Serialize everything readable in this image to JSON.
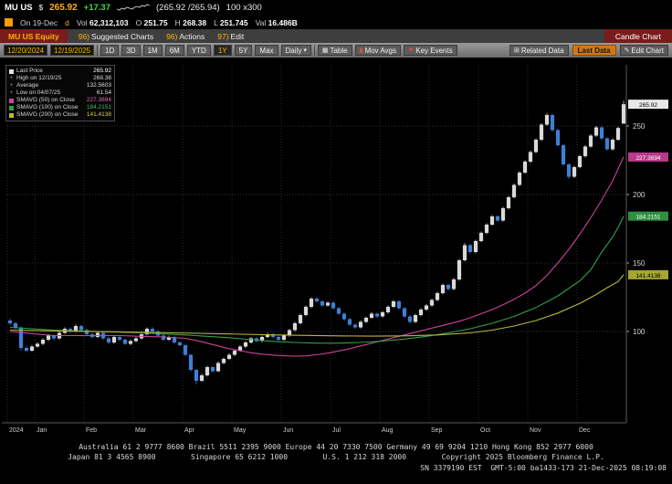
{
  "quote_bar": {
    "ticker": "MU US",
    "currency": "$",
    "price": "265.92",
    "change": "+17.37",
    "bid_ask": "(265.92 /265.94)",
    "size": "100 x300",
    "sparkline": [
      4,
      3,
      5,
      4,
      6,
      5,
      4,
      6,
      7,
      6,
      8,
      7,
      9,
      8
    ]
  },
  "stats_bar": {
    "prefix": "On 19-Dec",
    "flag": "d",
    "items": [
      {
        "label": "Vol",
        "value": "62,312,103"
      },
      {
        "label": "O",
        "value": "251.75"
      },
      {
        "label": "H",
        "value": "268.38"
      },
      {
        "label": "L",
        "value": "251.745"
      },
      {
        "label": "Val",
        "value": "16.486B"
      }
    ]
  },
  "menu_bar": {
    "security": "MU US Equity",
    "items": [
      {
        "num": "96)",
        "label": "Suggested Charts"
      },
      {
        "num": "96)",
        "label": "Actions"
      },
      {
        "num": "97)",
        "label": "Edit"
      }
    ],
    "chart_type": "Candle Chart"
  },
  "toolbar": {
    "date_from": "12/20/2024",
    "date_to": "12/19/2025",
    "periods": [
      "1D",
      "3D",
      "1M",
      "6M",
      "YTD",
      "1Y",
      "5Y",
      "Max"
    ],
    "selected_period": "1Y",
    "frequency": "Daily",
    "freq_arrow": "▾",
    "table_label": "Table",
    "table_icon": "▦",
    "mov_avgs_label": "Mov Avgs",
    "key_events_label": "Key Events",
    "related_data_label": "Related Data",
    "related_icon": "⊞",
    "last_data_label": "Last Data",
    "edit_chart_label": "Edit Chart",
    "edit_icon": "✎"
  },
  "legend": {
    "rows": [
      {
        "marker": "#e0e0e0",
        "label": "Last Price",
        "value": "265.92",
        "color": "#ffffff"
      },
      {
        "marker": "+",
        "label": "High on 12/19/25",
        "value": "268.38",
        "color": "#dddddd"
      },
      {
        "marker": "+",
        "label": "Average",
        "value": "132.5603",
        "color": "#dddddd"
      },
      {
        "marker": "+",
        "label": "Low on 04/07/25",
        "value": "61.54",
        "color": "#dddddd"
      },
      {
        "marker": "#cc4499",
        "label": "SMAVG (50) on Close",
        "value": "227.3694",
        "color": "#e06bb0"
      },
      {
        "marker": "#33a04a",
        "label": "SMAVG (100) on Close",
        "value": "184.2151",
        "color": "#4db868"
      },
      {
        "marker": "#b8b83d",
        "label": "SMAVG (200) on Close",
        "value": "141.4138",
        "color": "#cfcf52"
      }
    ]
  },
  "chart_data": {
    "type": "candlestick",
    "title": "MU US Equity 1Y Daily Candle Chart",
    "ylim": [
      55,
      285
    ],
    "y_gridlines": [
      100,
      150,
      200,
      250
    ],
    "up_color": "#d9d9d9",
    "down_color": "#3f7fd6",
    "last_price": 265.92,
    "x_ticks": [
      {
        "label": "2024",
        "i": 0
      },
      {
        "label": "Jan",
        "i": 5
      },
      {
        "label": "Feb",
        "i": 14
      },
      {
        "label": "Mar",
        "i": 23
      },
      {
        "label": "Apr",
        "i": 32
      },
      {
        "label": "May",
        "i": 41
      },
      {
        "label": "Jun",
        "i": 50
      },
      {
        "label": "Jul",
        "i": 59
      },
      {
        "label": "Aug",
        "i": 68
      },
      {
        "label": "Sep",
        "i": 77
      },
      {
        "label": "Oct",
        "i": 86
      },
      {
        "label": "Nov",
        "i": 95
      },
      {
        "label": "Dec",
        "i": 104
      }
    ],
    "candles": [
      [
        108,
        109.5,
        104.8,
        106
      ],
      [
        106,
        107.2,
        101.9,
        103
      ],
      [
        103,
        103.5,
        86.2,
        88
      ],
      [
        88,
        89.4,
        84.9,
        86
      ],
      [
        86,
        90.1,
        85.3,
        89
      ],
      [
        89,
        92,
        88.1,
        91
      ],
      [
        91,
        95,
        90.2,
        94
      ],
      [
        94,
        98.1,
        93,
        97
      ],
      [
        97,
        98,
        93.8,
        95
      ],
      [
        95,
        100.2,
        94.1,
        99
      ],
      [
        99,
        103,
        98.2,
        102
      ],
      [
        102,
        103.1,
        98.9,
        100
      ],
      [
        100,
        105.2,
        99.3,
        104
      ],
      [
        104,
        105,
        99.8,
        101
      ],
      [
        101,
        102.2,
        96.9,
        98
      ],
      [
        98,
        99,
        94.8,
        96
      ],
      [
        96,
        100.1,
        95.2,
        99
      ],
      [
        99,
        99.8,
        94,
        95
      ],
      [
        95,
        95.9,
        90.8,
        92
      ],
      [
        92,
        96.8,
        91.1,
        96
      ],
      [
        96,
        96.9,
        92.9,
        94
      ],
      [
        94,
        94.8,
        90.2,
        91
      ],
      [
        91,
        94,
        90.1,
        93
      ],
      [
        93,
        96.1,
        92.2,
        95
      ],
      [
        95,
        99,
        94.1,
        98
      ],
      [
        98,
        103,
        97.2,
        102
      ],
      [
        102,
        103.2,
        99,
        100
      ],
      [
        100,
        101.1,
        96,
        97
      ],
      [
        97,
        97.9,
        93.1,
        94
      ],
      [
        94,
        97,
        93.2,
        96
      ],
      [
        96,
        96.8,
        91.1,
        92
      ],
      [
        92,
        92.9,
        89,
        90
      ],
      [
        90,
        90.5,
        81.9,
        83
      ],
      [
        83,
        83.6,
        70.8,
        72
      ],
      [
        72,
        72.5,
        61.54,
        64
      ],
      [
        64,
        69.2,
        63.1,
        68
      ],
      [
        68,
        75,
        67.2,
        74
      ],
      [
        74,
        74.8,
        70,
        71
      ],
      [
        71,
        78.1,
        70.3,
        77
      ],
      [
        77,
        81,
        76.1,
        80
      ],
      [
        80,
        84,
        79.2,
        83
      ],
      [
        83,
        87,
        82.1,
        86
      ],
      [
        86,
        90,
        85.2,
        89
      ],
      [
        89,
        93,
        88.1,
        92
      ],
      [
        92,
        96,
        91.2,
        95
      ],
      [
        95,
        95.9,
        92,
        93
      ],
      [
        93,
        97,
        92.1,
        96
      ],
      [
        96,
        99,
        95.2,
        98
      ],
      [
        98,
        98.9,
        95,
        96
      ],
      [
        96,
        96.9,
        93,
        94
      ],
      [
        94,
        98,
        93.1,
        97
      ],
      [
        97,
        102,
        96.2,
        101
      ],
      [
        101,
        107,
        100.2,
        106
      ],
      [
        106,
        113,
        105.1,
        112
      ],
      [
        112,
        119,
        111.2,
        118
      ],
      [
        118,
        125,
        117.1,
        124
      ],
      [
        124,
        125.1,
        120.9,
        122
      ],
      [
        122,
        123,
        118,
        119
      ],
      [
        119,
        122,
        118.1,
        121
      ],
      [
        121,
        121.9,
        116,
        117
      ],
      [
        117,
        117.9,
        112.1,
        113
      ],
      [
        113,
        113.8,
        108,
        109
      ],
      [
        109,
        109.9,
        104.1,
        105
      ],
      [
        105,
        105.8,
        102,
        103
      ],
      [
        103,
        108,
        102.2,
        107
      ],
      [
        107,
        111,
        106.1,
        110
      ],
      [
        110,
        114,
        109.2,
        113
      ],
      [
        113,
        113.9,
        110,
        111
      ],
      [
        111,
        115,
        110.2,
        114
      ],
      [
        114,
        119,
        113.1,
        118
      ],
      [
        118,
        123,
        117.2,
        122
      ],
      [
        122,
        122.9,
        116.1,
        117
      ],
      [
        117,
        117.8,
        110,
        111
      ],
      [
        111,
        111.9,
        106.1,
        107
      ],
      [
        107,
        112.9,
        106.2,
        112
      ],
      [
        112,
        117,
        111.1,
        116
      ],
      [
        116,
        120,
        115.2,
        119
      ],
      [
        119,
        124,
        118.1,
        123
      ],
      [
        123,
        129,
        122.2,
        128
      ],
      [
        128,
        135,
        127.1,
        134
      ],
      [
        134,
        134.9,
        130,
        131
      ],
      [
        131,
        139,
        130.2,
        138
      ],
      [
        138,
        153,
        137.1,
        152
      ],
      [
        152,
        164.5,
        151.2,
        163
      ],
      [
        163,
        164,
        156.9,
        158
      ],
      [
        158,
        167,
        157.1,
        166
      ],
      [
        166,
        173,
        165.2,
        172
      ],
      [
        172,
        179,
        171.1,
        178
      ],
      [
        178,
        185,
        177.2,
        184
      ],
      [
        184,
        184.9,
        180,
        181
      ],
      [
        181,
        191,
        180.2,
        190
      ],
      [
        190,
        199,
        189.1,
        198
      ],
      [
        198,
        208,
        197.2,
        207
      ],
      [
        207,
        217,
        206.1,
        216
      ],
      [
        216,
        225,
        215.2,
        224
      ],
      [
        224,
        232,
        223.1,
        231
      ],
      [
        231,
        241,
        230.2,
        240
      ],
      [
        240,
        252,
        239.1,
        251
      ],
      [
        251,
        259.5,
        250.2,
        258
      ],
      [
        258,
        259,
        246,
        247
      ],
      [
        247,
        248,
        234.9,
        236
      ],
      [
        236,
        237,
        220.9,
        222
      ],
      [
        222,
        222.9,
        211.5,
        213
      ],
      [
        213,
        221,
        212.1,
        220
      ],
      [
        220,
        229,
        219.2,
        228
      ],
      [
        228,
        236,
        227.1,
        235
      ],
      [
        235,
        244,
        234.2,
        243
      ],
      [
        243,
        250,
        242.1,
        249
      ],
      [
        249,
        249.9,
        240,
        241
      ],
      [
        241,
        241.9,
        232,
        233
      ],
      [
        233,
        241,
        232.1,
        240
      ],
      [
        240,
        249.5,
        239.2,
        248.55
      ],
      [
        251.75,
        268.38,
        251.745,
        265.92
      ]
    ],
    "moving_averages": [
      {
        "name": "SMAVG(50)",
        "color": "#cc4499",
        "last": 227.3694,
        "points": [
          [
            0,
            100
          ],
          [
            4,
            98.5
          ],
          [
            8,
            97
          ],
          [
            12,
            97
          ],
          [
            16,
            97
          ],
          [
            20,
            97
          ],
          [
            24,
            96.5
          ],
          [
            28,
            96
          ],
          [
            32,
            95
          ],
          [
            34,
            93.5
          ],
          [
            36,
            91.5
          ],
          [
            38,
            89.5
          ],
          [
            40,
            87.5
          ],
          [
            42,
            86
          ],
          [
            44,
            84.5
          ],
          [
            46,
            83.5
          ],
          [
            48,
            82.8
          ],
          [
            50,
            82.3
          ],
          [
            52,
            82
          ],
          [
            54,
            82.2
          ],
          [
            56,
            83
          ],
          [
            58,
            84.2
          ],
          [
            60,
            85.8
          ],
          [
            62,
            87.5
          ],
          [
            64,
            89.5
          ],
          [
            66,
            91.5
          ],
          [
            68,
            93.5
          ],
          [
            70,
            95.5
          ],
          [
            72,
            97.5
          ],
          [
            74,
            99.5
          ],
          [
            76,
            101.5
          ],
          [
            78,
            103.5
          ],
          [
            80,
            105.5
          ],
          [
            82,
            107.5
          ],
          [
            84,
            110
          ],
          [
            86,
            113
          ],
          [
            88,
            116
          ],
          [
            90,
            119.5
          ],
          [
            92,
            123.5
          ],
          [
            94,
            128
          ],
          [
            96,
            133.5
          ],
          [
            98,
            141
          ],
          [
            100,
            150
          ],
          [
            102,
            160
          ],
          [
            104,
            171
          ],
          [
            106,
            183
          ],
          [
            108,
            196
          ],
          [
            110,
            210
          ],
          [
            112,
            227.37
          ]
        ]
      },
      {
        "name": "SMAVG(100)",
        "color": "#33a04a",
        "last": 184.2151,
        "points": [
          [
            0,
            103
          ],
          [
            8,
            101
          ],
          [
            16,
            100
          ],
          [
            24,
            99
          ],
          [
            32,
            97.5
          ],
          [
            40,
            95.5
          ],
          [
            44,
            94
          ],
          [
            48,
            92.8
          ],
          [
            52,
            92
          ],
          [
            56,
            91.5
          ],
          [
            60,
            91.5
          ],
          [
            64,
            92
          ],
          [
            68,
            93
          ],
          [
            72,
            94.5
          ],
          [
            76,
            96.5
          ],
          [
            80,
            99
          ],
          [
            84,
            102
          ],
          [
            88,
            106
          ],
          [
            92,
            111
          ],
          [
            96,
            117.5
          ],
          [
            100,
            126
          ],
          [
            104,
            137
          ],
          [
            106,
            145
          ],
          [
            108,
            158
          ],
          [
            110,
            169
          ],
          [
            111,
            176
          ],
          [
            112,
            184.22
          ]
        ]
      },
      {
        "name": "SMAVG(200)",
        "color": "#b8b83d",
        "last": 141.4138,
        "points": [
          [
            0,
            101
          ],
          [
            10,
            100.3
          ],
          [
            20,
            99.7
          ],
          [
            30,
            99
          ],
          [
            40,
            98.2
          ],
          [
            50,
            97.4
          ],
          [
            60,
            96.8
          ],
          [
            66,
            96.6
          ],
          [
            72,
            96.8
          ],
          [
            78,
            97.5
          ],
          [
            84,
            99
          ],
          [
            88,
            101
          ],
          [
            92,
            104
          ],
          [
            96,
            108
          ],
          [
            100,
            113.5
          ],
          [
            104,
            120.5
          ],
          [
            107,
            127
          ],
          [
            109,
            132
          ],
          [
            111,
            136.5
          ],
          [
            112,
            141.41
          ]
        ]
      }
    ],
    "axis_badges": [
      {
        "text": "265.92",
        "price": 265.92,
        "bg": "#e8e8e8",
        "fg": "#000000"
      },
      {
        "text": "227.3694",
        "price": 227.3694,
        "bg": "#b93a8c",
        "fg": "#ffffff"
      },
      {
        "text": "184.2151",
        "price": 184.2151,
        "bg": "#2f8f42",
        "fg": "#ffffff"
      },
      {
        "text": "141.4138",
        "price": 141.4138,
        "bg": "#a5a532",
        "fg": "#000000"
      }
    ]
  },
  "footer": {
    "line1": "Australia 61 2 9777 8600 Brazil 5511 2395 9000 Europe 44 20 7330 7500 Germany 49 69 9204 1210 Hong Kong 852 2977 6000",
    "line2": "Japan 81 3 4565 8900        Singapore 65 6212 1000        U.S. 1 212 318 2000        Copyright 2025 Bloomberg Finance L.P.",
    "line3": "SN 3379190 EST  GMT-5:00 ba1433-173 21-Dec-2025 08:19:08"
  }
}
